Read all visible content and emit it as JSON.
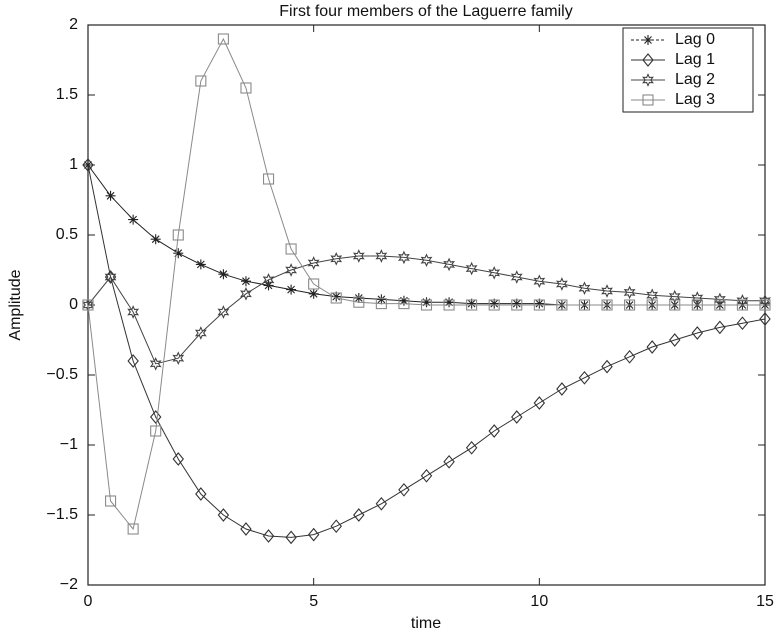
{
  "chart_data": {
    "type": "line",
    "title": "First four members of the Laguerre family",
    "xlabel": "time",
    "ylabel": "Amplitude",
    "x": [
      0,
      0.5,
      1,
      1.5,
      2,
      2.5,
      3,
      3.5,
      4,
      4.5,
      5,
      5.5,
      6,
      6.5,
      7,
      7.5,
      8,
      8.5,
      9,
      9.5,
      10,
      10.5,
      11,
      11.5,
      12,
      12.5,
      13,
      13.5,
      14,
      14.5,
      15
    ],
    "series": [
      {
        "name": "Lag 0",
        "color": "#222222",
        "marker": "star",
        "values": [
          1,
          0.78,
          0.61,
          0.47,
          0.37,
          0.29,
          0.22,
          0.17,
          0.14,
          0.11,
          0.08,
          0.06,
          0.05,
          0.04,
          0.03,
          0.02,
          0.02,
          0.01,
          0.01,
          0.01,
          0.01,
          0,
          0,
          0,
          0,
          0,
          0,
          0,
          0,
          0,
          0
        ]
      },
      {
        "name": "Lag 1",
        "color": "#333333",
        "marker": "diamond",
        "values": [
          1,
          0.2,
          -0.4,
          -0.8,
          -1.1,
          -1.35,
          -1.5,
          -1.6,
          -1.65,
          -1.66,
          -1.64,
          -1.58,
          -1.5,
          -1.42,
          -1.32,
          -1.22,
          -1.12,
          -1.02,
          -0.9,
          -0.8,
          -0.7,
          -0.6,
          -0.52,
          -0.44,
          -0.37,
          -0.3,
          -0.25,
          -0.2,
          -0.16,
          -0.13,
          -0.1
        ]
      },
      {
        "name": "Lag 2",
        "color": "#444444",
        "marker": "hexagram",
        "values": [
          0,
          0.2,
          -0.05,
          -0.42,
          -0.38,
          -0.2,
          -0.05,
          0.08,
          0.18,
          0.25,
          0.3,
          0.33,
          0.35,
          0.35,
          0.34,
          0.32,
          0.29,
          0.26,
          0.23,
          0.2,
          0.17,
          0.15,
          0.12,
          0.1,
          0.09,
          0.07,
          0.06,
          0.05,
          0.04,
          0.03,
          0.03
        ]
      },
      {
        "name": "Lag 3",
        "color": "#8a8a8a",
        "marker": "square",
        "values": [
          0,
          -1.4,
          -1.6,
          -0.9,
          0.5,
          1.6,
          1.9,
          1.55,
          0.9,
          0.4,
          0.15,
          0.05,
          0.02,
          0.01,
          0.01,
          0,
          0,
          0,
          0,
          0,
          0,
          0,
          0,
          0,
          0,
          0,
          0,
          0,
          0,
          0,
          0
        ]
      }
    ],
    "xlim": [
      0,
      15
    ],
    "xticks": [
      0,
      5,
      10,
      15
    ],
    "ylim": [
      -2,
      2
    ],
    "yticks": [
      {
        "value": -2,
        "label": "−2"
      },
      {
        "value": -1.5,
        "label": "−1.5"
      },
      {
        "value": -1,
        "label": "−1"
      },
      {
        "value": -0.5,
        "label": "−0.5"
      },
      0,
      0.5,
      1,
      1.5,
      2
    ],
    "grid": false,
    "legend": "upper right"
  }
}
